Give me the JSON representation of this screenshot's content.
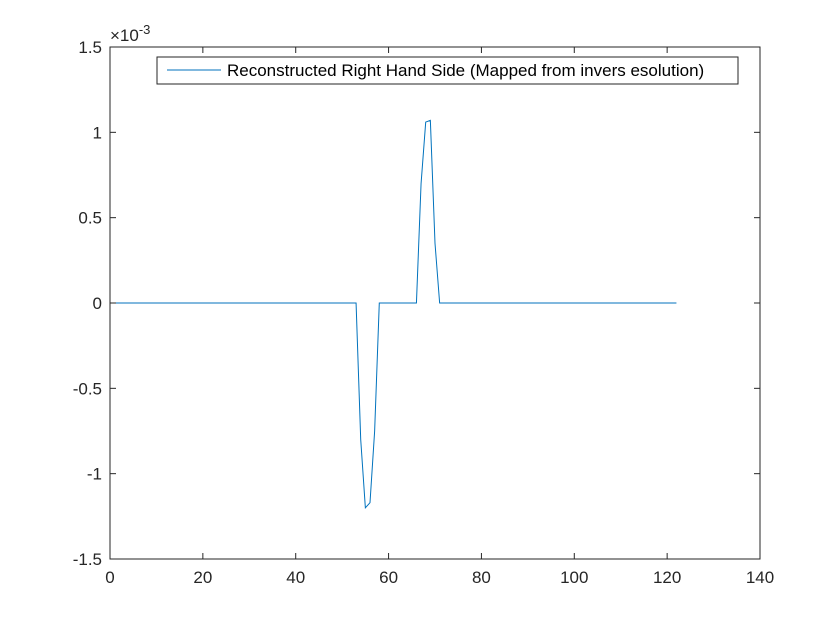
{
  "chart_data": {
    "type": "line",
    "title": "",
    "xlabel": "",
    "ylabel": "",
    "xlim": [
      0,
      140
    ],
    "ylim": [
      -1.5,
      1.5
    ],
    "y_exponent_label": {
      "base": "×10",
      "power": "-3"
    },
    "x_ticks": [
      0,
      20,
      40,
      60,
      80,
      100,
      120,
      140
    ],
    "y_ticks": [
      -1.5,
      -1,
      -0.5,
      0,
      0.5,
      1,
      1.5
    ],
    "x_tick_labels": [
      "0",
      "20",
      "40",
      "60",
      "80",
      "100",
      "120",
      "140"
    ],
    "y_tick_labels": [
      "-1.5",
      "-1",
      "-0.5",
      "0",
      "0.5",
      "1",
      "1.5"
    ],
    "grid": false,
    "legend_position": "top-right",
    "series": [
      {
        "name": "Reconstructed Right Hand Side (Mapped from invers esolution)",
        "color": "#0072BD",
        "x": [
          1,
          10,
          20,
          30,
          40,
          50,
          53,
          54,
          55,
          56,
          57,
          58,
          60,
          63,
          66,
          67,
          68,
          69,
          70,
          71,
          75,
          80,
          82,
          90,
          100,
          110,
          122
        ],
        "y": [
          0,
          0,
          0,
          0,
          0,
          0,
          0,
          -0.8,
          -1.2,
          -1.17,
          -0.75,
          0,
          0,
          0,
          0,
          0.7,
          1.06,
          1.07,
          0.35,
          0,
          0,
          0,
          0,
          0,
          0,
          0,
          0
        ]
      }
    ]
  }
}
